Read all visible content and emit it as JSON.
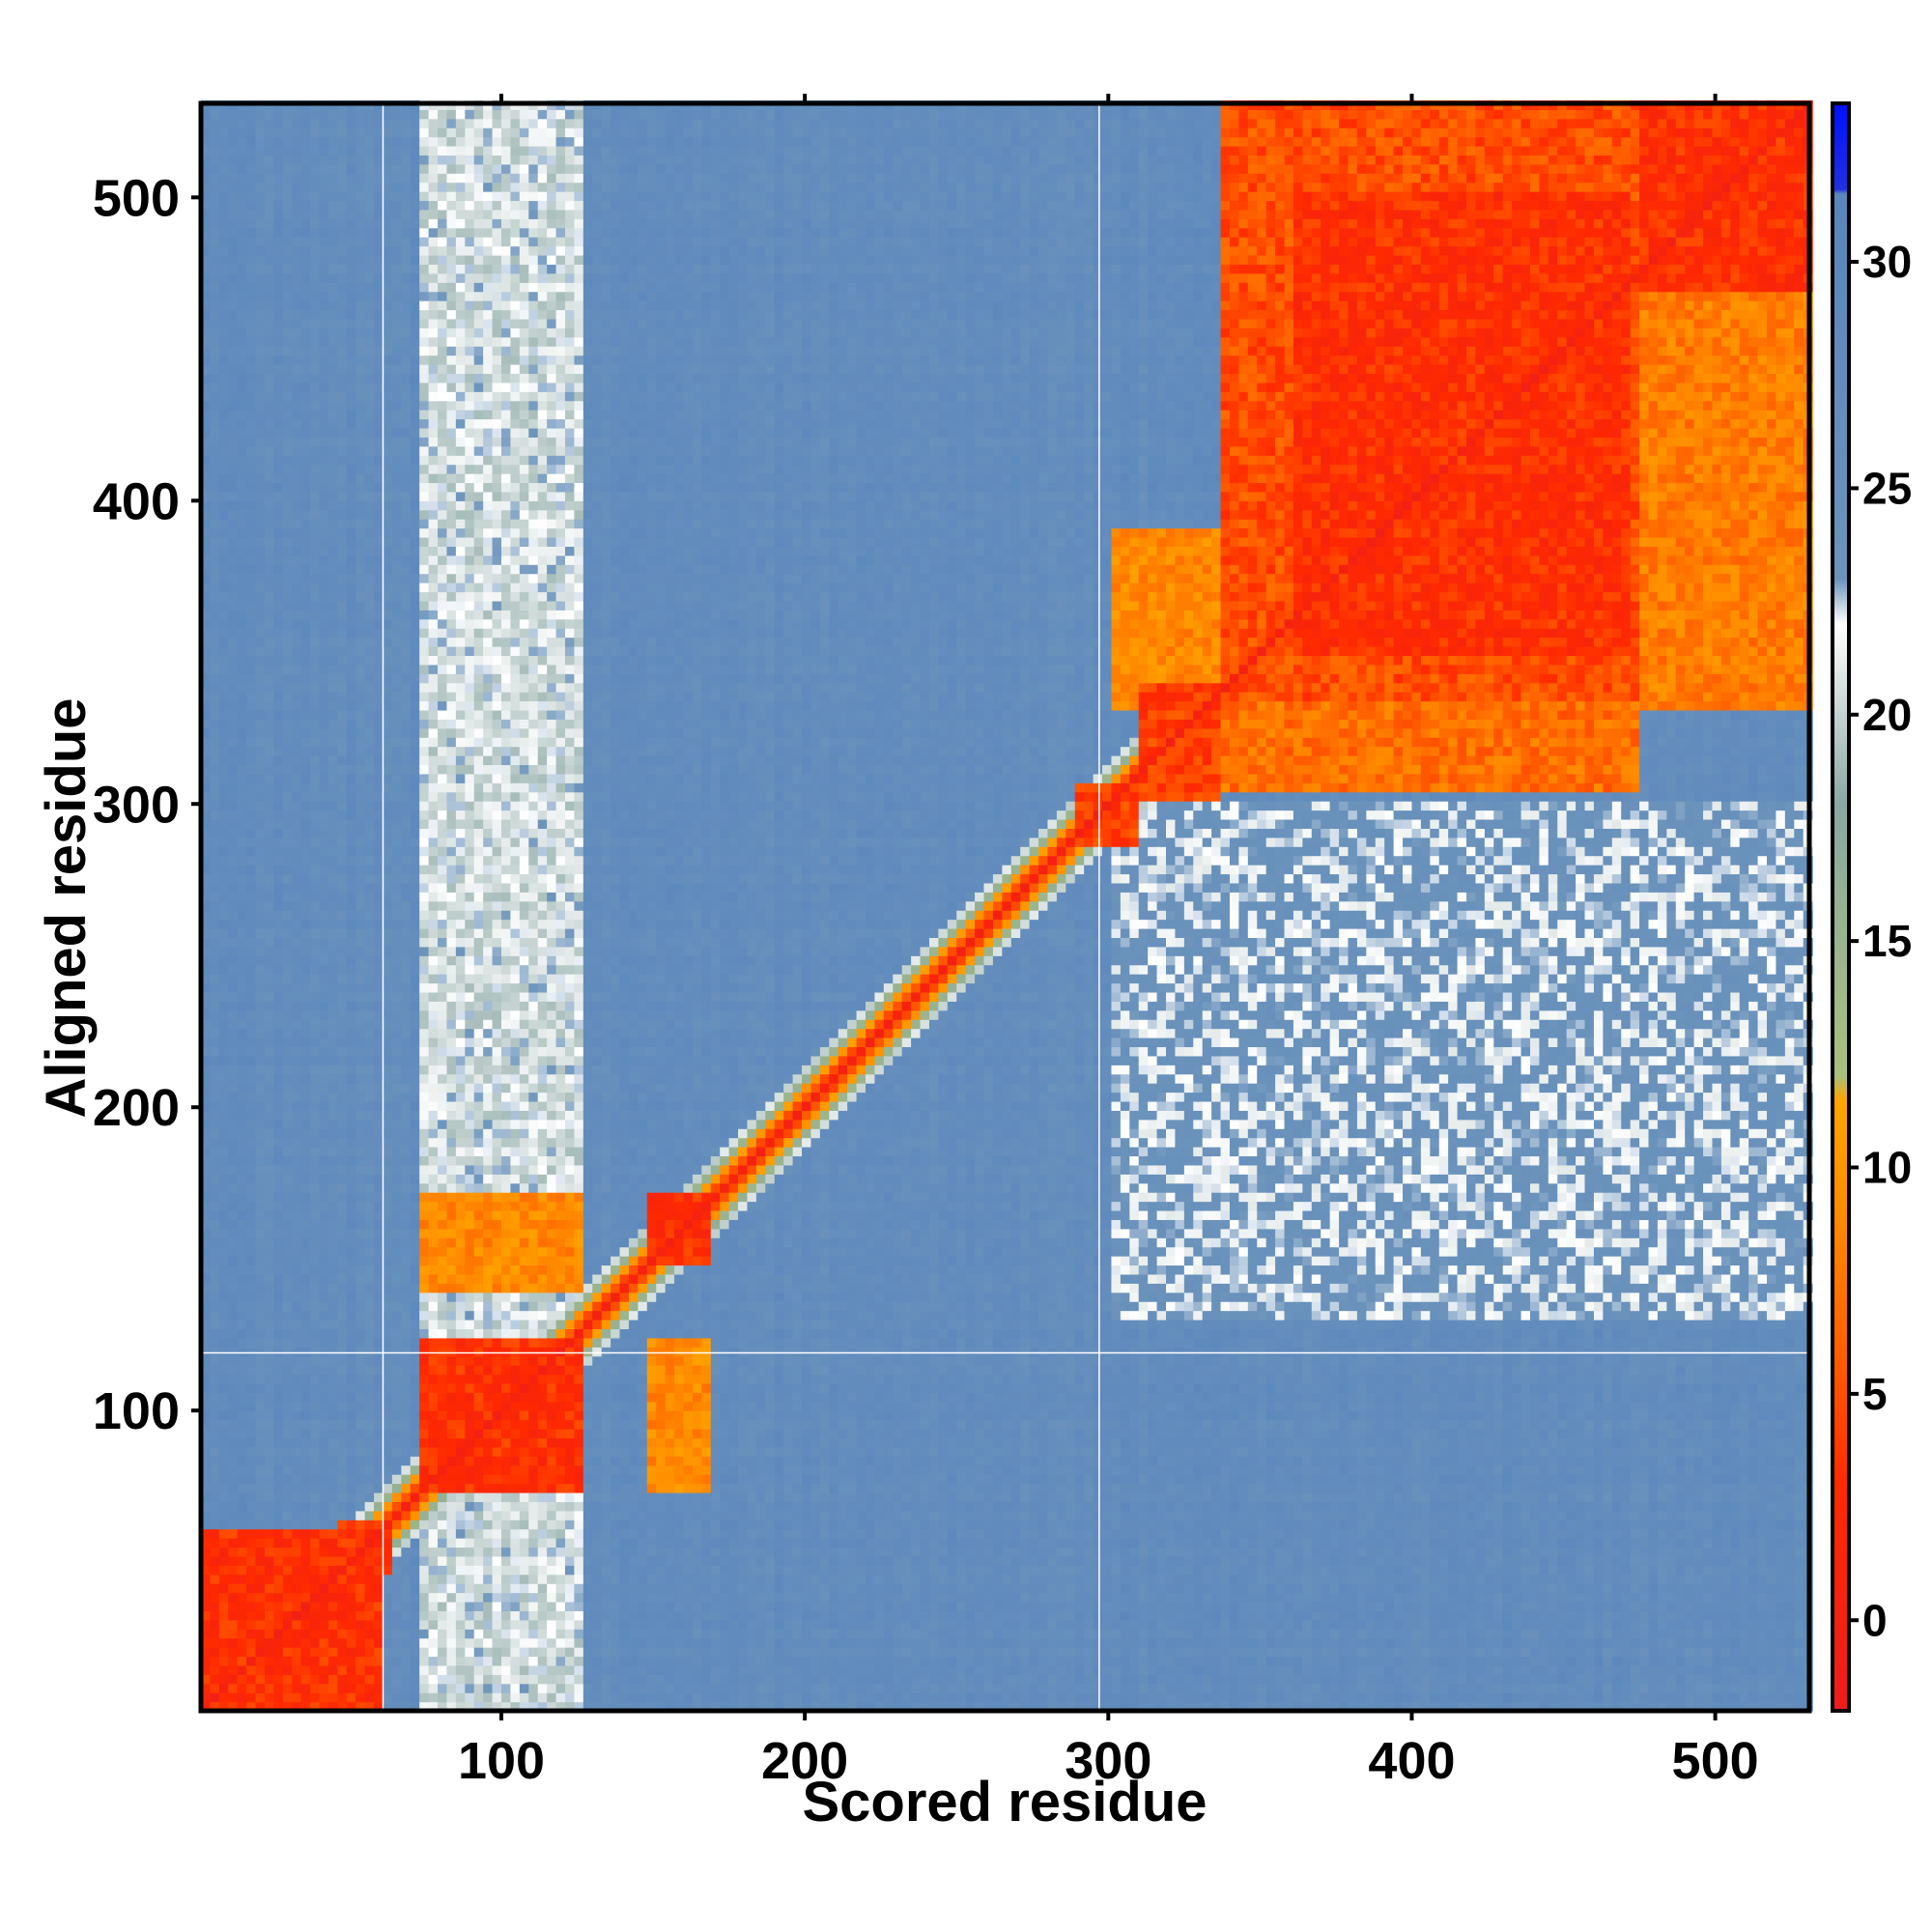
{
  "chart_data": {
    "type": "heatmap",
    "title": "",
    "xlabel": "Scored residue",
    "ylabel": "Aligned residue",
    "xlim": [
      1,
      531
    ],
    "ylim": [
      1,
      531
    ],
    "x_ticks": [
      100,
      200,
      300,
      400,
      500
    ],
    "y_ticks": [
      100,
      200,
      300,
      400,
      500
    ],
    "colorbar": {
      "ticks": [
        0,
        5,
        10,
        15,
        20,
        25,
        30
      ],
      "range": [
        -2,
        33.5
      ],
      "stops": [
        {
          "value": -2,
          "color": "#ee1c1c"
        },
        {
          "value": 3,
          "color": "#ff2a00"
        },
        {
          "value": 6,
          "color": "#ff6000"
        },
        {
          "value": 9,
          "color": "#ff8c00"
        },
        {
          "value": 11.5,
          "color": "#ffa500"
        },
        {
          "value": 12,
          "color": "#aac07a"
        },
        {
          "value": 18,
          "color": "#8aa7a3"
        },
        {
          "value": 22,
          "color": "#ffffff"
        },
        {
          "value": 23,
          "color": "#6b93bb"
        },
        {
          "value": 31.5,
          "color": "#5a86bd"
        },
        {
          "value": 31.6,
          "color": "#2030e0"
        },
        {
          "value": 33.5,
          "color": "#0010ff"
        }
      ]
    },
    "background_value": 27,
    "diagonal_value": 0,
    "blocks": [
      {
        "x": [
          1,
          60
        ],
        "y": [
          1,
          60
        ],
        "value": 3
      },
      {
        "x": [
          45,
          62
        ],
        "y": [
          45,
          62
        ],
        "value": 4
      },
      {
        "x": [
          73,
          125
        ],
        "y": [
          73,
          122
        ],
        "value": 3
      },
      {
        "x": [
          73,
          125
        ],
        "y": [
          140,
          172
        ],
        "value": 9
      },
      {
        "x": [
          148,
          168
        ],
        "y": [
          72,
          122
        ],
        "value": 9
      },
      {
        "x": [
          148,
          168
        ],
        "y": [
          148,
          172
        ],
        "value": 3
      },
      {
        "x": [
          290,
          310
        ],
        "y": [
          285,
          305
        ],
        "value": 4
      },
      {
        "x": [
          310,
          335
        ],
        "y": [
          300,
          340
        ],
        "value": 4
      },
      {
        "x": [
          300,
          335
        ],
        "y": [
          330,
          390
        ],
        "value": 9
      },
      {
        "x": [
          336,
          475
        ],
        "y": [
          305,
          531
        ],
        "value": 7
      },
      {
        "x": [
          336,
          475
        ],
        "y": [
          335,
          531
        ],
        "value": 5
      },
      {
        "x": [
          360,
          470
        ],
        "y": [
          350,
          500
        ],
        "value": 3
      },
      {
        "x": [
          476,
          531
        ],
        "y": [
          330,
          531
        ],
        "value": 8
      },
      {
        "x": [
          476,
          531
        ],
        "y": [
          470,
          531
        ],
        "value": 3
      },
      {
        "x": [
          72,
          125
        ],
        "y": [
          1,
          531
        ],
        "value": 21
      },
      {
        "x": [
          300,
          531
        ],
        "y": [
          130,
          300
        ],
        "value": 23
      }
    ],
    "white_lines": {
      "x": [
        61,
        297
      ],
      "y": [
        119
      ]
    }
  }
}
